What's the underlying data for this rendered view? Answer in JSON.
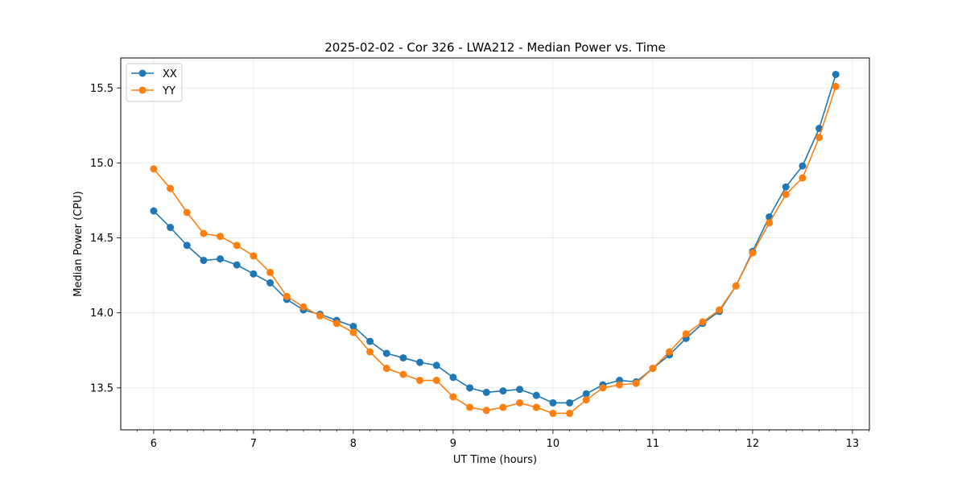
{
  "chart_data": {
    "type": "line",
    "title": "2025-02-02 - Cor 326 - LWA212 - Median Power vs. Time",
    "xlabel": "UT Time (hours)",
    "ylabel": "Median Power (CPU)",
    "xlim": [
      5.67,
      13.17
    ],
    "ylim": [
      13.22,
      15.7
    ],
    "grid": true,
    "legend_position": "top-left",
    "x_ticks": [
      6,
      7,
      8,
      9,
      10,
      11,
      12,
      13
    ],
    "x_tick_labels": [
      "6",
      "7",
      "8",
      "9",
      "10",
      "11",
      "12",
      "13"
    ],
    "y_ticks": [
      13.5,
      14.0,
      14.5,
      15.0,
      15.5
    ],
    "y_tick_labels": [
      "13.5",
      "14.0",
      "14.5",
      "15.0",
      "15.5"
    ],
    "x": [
      6.0,
      6.1667,
      6.3333,
      6.5,
      6.6667,
      6.8333,
      7.0,
      7.1667,
      7.3333,
      7.5,
      7.6667,
      7.8333,
      8.0,
      8.1667,
      8.3333,
      8.5,
      8.6667,
      8.8333,
      9.0,
      9.1667,
      9.3333,
      9.5,
      9.6667,
      9.8333,
      10.0,
      10.1667,
      10.3333,
      10.5,
      10.6667,
      10.8333,
      11.0,
      11.1667,
      11.3333,
      11.5,
      11.6667,
      11.8333,
      12.0,
      12.1667,
      12.3333,
      12.5,
      12.6667,
      12.8333
    ],
    "series": [
      {
        "name": "XX",
        "color": "#1f77b4",
        "values": [
          14.68,
          14.57,
          14.45,
          14.35,
          14.36,
          14.32,
          14.26,
          14.2,
          14.09,
          14.02,
          13.99,
          13.95,
          13.91,
          13.81,
          13.73,
          13.7,
          13.67,
          13.65,
          13.57,
          13.5,
          13.47,
          13.48,
          13.49,
          13.45,
          13.4,
          13.4,
          13.46,
          13.52,
          13.55,
          13.54,
          13.63,
          13.72,
          13.83,
          13.93,
          14.01,
          14.18,
          14.41,
          14.64,
          14.84,
          14.98,
          15.23,
          15.59
        ]
      },
      {
        "name": "YY",
        "color": "#ff7f0e",
        "values": [
          14.96,
          14.83,
          14.67,
          14.53,
          14.51,
          14.45,
          14.38,
          14.27,
          14.11,
          14.04,
          13.98,
          13.93,
          13.87,
          13.74,
          13.63,
          13.59,
          13.55,
          13.55,
          13.44,
          13.37,
          13.35,
          13.37,
          13.4,
          13.37,
          13.33,
          13.33,
          13.42,
          13.5,
          13.52,
          13.53,
          13.63,
          13.74,
          13.86,
          13.94,
          14.02,
          14.18,
          14.4,
          14.6,
          14.79,
          14.9,
          15.17,
          15.51
        ]
      }
    ]
  }
}
